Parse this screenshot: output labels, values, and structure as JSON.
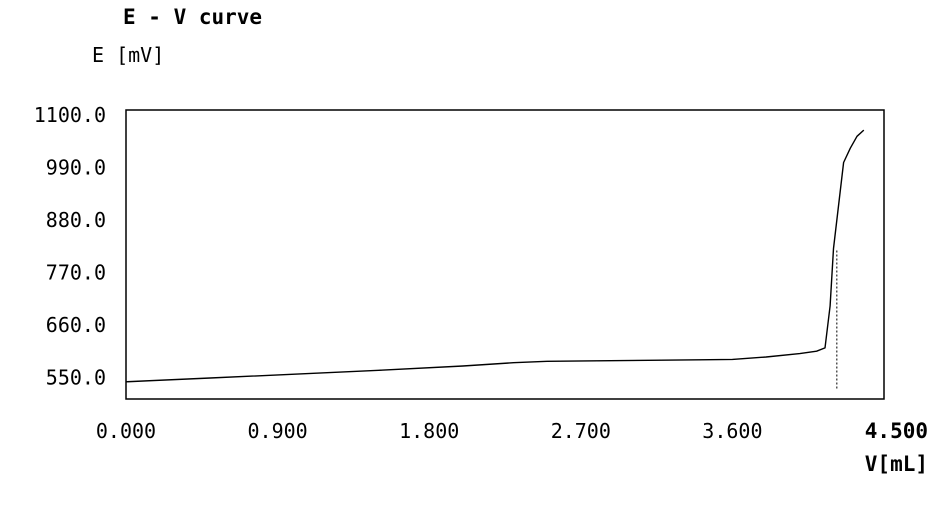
{
  "chart_data": {
    "type": "line",
    "title": "E - V curve",
    "ylabel": "E [mV]",
    "xlabel": "V[mL]",
    "xlim": [
      0.0,
      4.5
    ],
    "ylim": [
      505.0,
      1110.0
    ],
    "xticks": [
      "0.000",
      "0.900",
      "1.800",
      "2.700",
      "3.600",
      "4.500"
    ],
    "xtick_values": [
      0.0,
      0.9,
      1.8,
      2.7,
      3.6,
      4.5
    ],
    "yticks": [
      "1100.0",
      "990.0",
      "880.0",
      "770.0",
      "660.0",
      "550.0"
    ],
    "ytick_values": [
      1100.0,
      990.0,
      880.0,
      770.0,
      660.0,
      550.0
    ],
    "grid": false,
    "series": [
      {
        "x": [
          0.0,
          0.5,
          1.0,
          1.5,
          2.0,
          2.3,
          2.5,
          2.8,
          3.1,
          3.4,
          3.6,
          3.8,
          4.0,
          4.1,
          4.15,
          4.18,
          4.2,
          4.26,
          4.3,
          4.34,
          4.38
        ],
        "y": [
          541,
          549,
          557,
          565,
          574,
          581,
          584,
          585,
          586,
          587,
          588,
          593,
          600,
          605,
          612,
          700,
          820,
          1000,
          1030,
          1055,
          1068
        ],
        "color": "#000000"
      }
    ],
    "annotations": [
      {
        "type": "vertical-line",
        "x": 4.22,
        "y_from": 527,
        "y_to": 820,
        "style": "dotted"
      }
    ]
  }
}
